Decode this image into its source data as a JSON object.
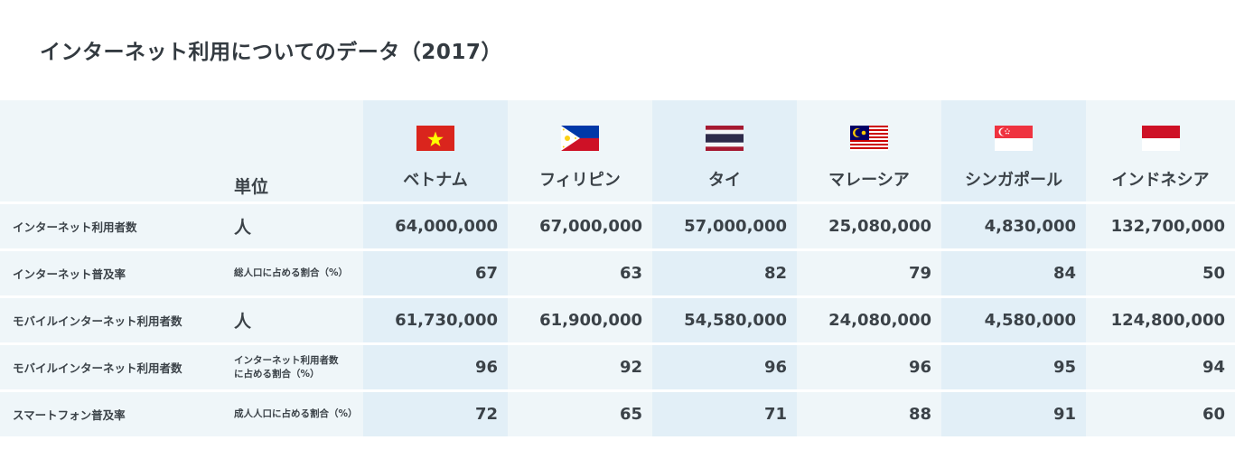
{
  "title": "インターネット利用についてのデータ（2017）",
  "header": {
    "unit_label": "単位",
    "countries": [
      {
        "name": "ベトナム",
        "flag_icon": "vietnam-flag-icon"
      },
      {
        "name": "フィリピン",
        "flag_icon": "philippines-flag-icon"
      },
      {
        "name": "タイ",
        "flag_icon": "thailand-flag-icon"
      },
      {
        "name": "マレーシア",
        "flag_icon": "malaysia-flag-icon"
      },
      {
        "name": "シンガポール",
        "flag_icon": "singapore-flag-icon"
      },
      {
        "name": "インドネシア",
        "flag_icon": "indonesia-flag-icon"
      }
    ]
  },
  "rows": [
    {
      "label": "インターネット利用者数",
      "unit": "人",
      "values": [
        "64,000,000",
        "67,000,000",
        "57,000,000",
        "25,080,000",
        "4,830,000",
        "132,700,000"
      ]
    },
    {
      "label": "インターネット普及率",
      "unit": "総人口に占める割合（%）",
      "values": [
        "67",
        "63",
        "82",
        "79",
        "84",
        "50"
      ]
    },
    {
      "label": "モバイルインターネット利用者数",
      "unit": "人",
      "values": [
        "61,730,000",
        "61,900,000",
        "54,580,000",
        "24,080,000",
        "4,580,000",
        "124,800,000"
      ]
    },
    {
      "label": "モバイルインターネット利用者数",
      "unit_line1": "インターネット利用者数",
      "unit_line2": "に占める割合（%）",
      "values": [
        "96",
        "92",
        "96",
        "96",
        "95",
        "94"
      ]
    },
    {
      "label": "スマートフォン普及率",
      "unit": "成人人口に占める割合（%）",
      "values": [
        "72",
        "65",
        "71",
        "88",
        "91",
        "60"
      ]
    }
  ],
  "colors": {
    "column_dark": "#e2eff7",
    "column_light": "#eff6f9",
    "text": "#333a40"
  }
}
